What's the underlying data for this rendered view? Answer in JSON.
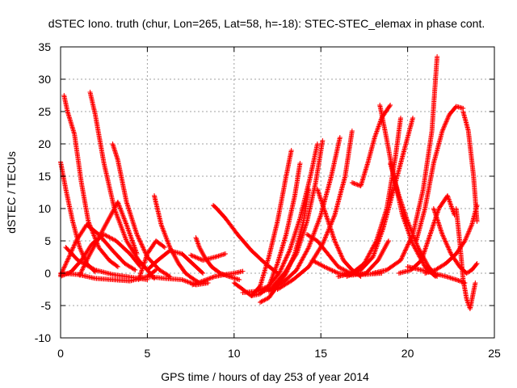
{
  "chart_data": {
    "type": "scatter",
    "title": "dSTEC Iono. truth (chur, Lon=265, Lat=58, h=-18): STEC-STEC_elemax in phase cont.",
    "xlabel": "GPS time / hours of day 253 of year 2014",
    "ylabel": "dSTEC  / TECUs",
    "xlim": [
      0,
      25
    ],
    "ylim": [
      -10,
      35
    ],
    "xticks": [
      0,
      5,
      10,
      15,
      20,
      25
    ],
    "yticks": [
      -10,
      -5,
      0,
      5,
      10,
      15,
      20,
      25,
      30,
      35
    ],
    "grid": true,
    "marker": "+",
    "color": "#ff0000",
    "tracks": [
      {
        "x": [
          0.0,
          0.3,
          0.7,
          1.1,
          1.5,
          2.0
        ],
        "y": [
          17.2,
          13.0,
          8.0,
          4.0,
          1.5,
          0.2
        ]
      },
      {
        "x": [
          0.2,
          0.4,
          0.8,
          1.2,
          1.6,
          2.2,
          2.8,
          3.3
        ],
        "y": [
          27.5,
          25.0,
          21.5,
          14.0,
          8.0,
          4.0,
          2.0,
          1.0
        ]
      },
      {
        "x": [
          0.0,
          0.6,
          1.2,
          1.8,
          2.5,
          3.2,
          4.0,
          4.6
        ],
        "y": [
          -0.5,
          0.2,
          2.0,
          4.5,
          6.0,
          5.0,
          3.0,
          1.0
        ]
      },
      {
        "x": [
          0.0,
          1.0,
          2.0,
          3.0,
          4.0,
          5.0,
          5.5
        ],
        "y": [
          0.0,
          -0.2,
          -0.8,
          -1.0,
          -1.2,
          -0.5,
          0.5
        ]
      },
      {
        "x": [
          0.0,
          0.4,
          0.9,
          1.5,
          2.2,
          3.0,
          3.7,
          4.3
        ],
        "y": [
          -0.3,
          2.0,
          5.0,
          7.5,
          6.0,
          3.5,
          1.5,
          0.5
        ]
      },
      {
        "x": [
          1.7,
          2.0,
          2.5,
          3.1,
          3.8,
          4.5,
          5.0,
          5.4
        ],
        "y": [
          28.0,
          24.5,
          17.0,
          10.0,
          5.0,
          2.0,
          0.5,
          -0.8
        ]
      },
      {
        "x": [
          3.0,
          3.3,
          3.8,
          4.4,
          5.0,
          5.7,
          6.3
        ],
        "y": [
          20.0,
          17.5,
          11.0,
          6.0,
          2.5,
          0.5,
          -0.5
        ]
      },
      {
        "x": [
          1.1,
          1.6,
          2.2,
          2.7,
          3.3,
          3.8,
          4.4
        ],
        "y": [
          -0.3,
          2.5,
          5.5,
          8.0,
          11.0,
          7.5,
          3.0
        ]
      },
      {
        "x": [
          0.3,
          1.0,
          2.0,
          3.0,
          4.0,
          5.0
        ],
        "y": [
          4.0,
          2.0,
          0.5,
          -0.2,
          -0.6,
          -1.0
        ]
      },
      {
        "x": [
          4.5,
          5.0,
          5.5,
          6.0
        ],
        "y": [
          -1.0,
          3.0,
          5.0,
          4.0
        ]
      },
      {
        "x": [
          5.4,
          5.8,
          6.3,
          6.8,
          7.2,
          7.6,
          8.0
        ],
        "y": [
          12.0,
          7.5,
          4.0,
          1.5,
          0.0,
          -0.8,
          -1.5
        ]
      },
      {
        "x": [
          5.0,
          5.6,
          6.3,
          7.0,
          7.6,
          8.2
        ],
        "y": [
          0.5,
          2.0,
          3.5,
          3.0,
          1.5,
          0.0
        ]
      },
      {
        "x": [
          5.0,
          6.0,
          7.0,
          7.8,
          8.5
        ],
        "y": [
          -0.5,
          -0.8,
          -1.0,
          -1.8,
          -1.5
        ]
      },
      {
        "x": [
          7.8,
          8.0,
          8.3,
          8.7,
          9.2,
          9.7,
          10.3
        ],
        "y": [
          5.5,
          4.0,
          2.5,
          1.0,
          0.0,
          -0.5,
          -1.0
        ]
      },
      {
        "x": [
          7.6,
          8.2,
          8.9,
          9.5,
          10.0,
          10.5
        ],
        "y": [
          -1.8,
          -1.2,
          -0.5,
          -0.2,
          0.0,
          0.3
        ]
      },
      {
        "x": [
          7.5,
          8.2,
          8.9,
          9.5
        ],
        "y": [
          2.8,
          2.0,
          2.5,
          3.0
        ]
      },
      {
        "x": [
          8.8,
          9.0,
          9.5,
          10.2,
          11.0,
          11.8,
          12.5
        ],
        "y": [
          10.5,
          10.0,
          8.5,
          6.0,
          3.5,
          1.5,
          0.0
        ]
      },
      {
        "x": [
          10.0,
          10.5,
          11.0,
          11.5,
          12.0,
          12.5,
          13.0,
          13.3
        ],
        "y": [
          -1.5,
          -2.5,
          -3.5,
          -2.0,
          2.5,
          8.0,
          15.0,
          19.0
        ]
      },
      {
        "x": [
          11.0,
          11.5,
          12.0,
          12.5,
          13.0,
          13.5,
          13.8
        ],
        "y": [
          -3.5,
          -3.2,
          -2.0,
          1.5,
          6.0,
          12.0,
          17.0
        ]
      },
      {
        "x": [
          11.5,
          12.0,
          12.5,
          13.0,
          13.5,
          14.0,
          14.3
        ],
        "y": [
          -4.5,
          -3.8,
          -2.0,
          0.0,
          3.0,
          8.0,
          13.0
        ]
      },
      {
        "x": [
          10.5,
          11.3,
          12.0,
          12.6,
          13.2,
          13.8,
          14.4,
          14.8
        ],
        "y": [
          -3.0,
          -2.8,
          -2.0,
          0.0,
          3.5,
          8.5,
          15.0,
          20.0
        ]
      },
      {
        "x": [
          11.5,
          12.2,
          12.9,
          13.6,
          14.2,
          14.7,
          15.1
        ],
        "y": [
          -3.0,
          -2.2,
          0.0,
          3.0,
          8.0,
          14.0,
          20.5
        ]
      },
      {
        "x": [
          12.0,
          12.8,
          13.6,
          14.3,
          15.0,
          15.6,
          16.1
        ],
        "y": [
          -2.8,
          -1.5,
          0.5,
          4.0,
          9.0,
          15.0,
          21.0
        ]
      },
      {
        "x": [
          12.5,
          13.4,
          14.3,
          15.1,
          15.8,
          16.4,
          16.8
        ],
        "y": [
          -2.5,
          -1.0,
          1.0,
          4.5,
          9.0,
          15.0,
          22.0
        ]
      },
      {
        "x": [
          14.8,
          15.3,
          15.8,
          16.3,
          16.8,
          17.3
        ],
        "y": [
          13.0,
          9.0,
          5.0,
          2.0,
          0.5,
          -0.5
        ]
      },
      {
        "x": [
          14.2,
          14.8,
          15.4,
          16.0,
          16.7,
          17.5,
          18.5
        ],
        "y": [
          6.0,
          5.0,
          3.0,
          1.0,
          0.0,
          -0.2,
          0.0
        ]
      },
      {
        "x": [
          14.5,
          15.2,
          16.0,
          16.8,
          17.6,
          18.3,
          18.9
        ],
        "y": [
          2.0,
          1.0,
          0.0,
          -0.3,
          0.0,
          2.0,
          5.0
        ]
      },
      {
        "x": [
          16.0,
          16.8,
          17.5,
          18.2,
          18.8,
          19.3,
          19.6
        ],
        "y": [
          -0.5,
          0.0,
          1.5,
          5.0,
          10.0,
          18.0,
          24.0
        ]
      },
      {
        "x": [
          16.5,
          17.3,
          18.0,
          18.6,
          19.2,
          19.8,
          20.3
        ],
        "y": [
          -0.5,
          0.5,
          2.5,
          7.0,
          13.0,
          19.0,
          24.0
        ]
      },
      {
        "x": [
          16.8,
          17.3,
          17.7,
          18.1,
          18.5,
          19.0
        ],
        "y": [
          14.0,
          13.5,
          17.0,
          21.0,
          24.0,
          26.0
        ]
      },
      {
        "x": [
          18.4,
          18.7,
          19.2,
          19.7,
          20.3,
          21.0,
          21.6
        ],
        "y": [
          26.0,
          22.0,
          15.0,
          9.0,
          4.5,
          1.0,
          -0.5
        ]
      },
      {
        "x": [
          19.0,
          19.5,
          20.0,
          20.6,
          21.2,
          21.7
        ],
        "y": [
          17.0,
          12.0,
          8.0,
          4.0,
          1.0,
          -0.5
        ]
      },
      {
        "x": [
          18.0,
          18.8,
          19.6,
          20.3,
          20.9,
          21.4,
          21.7
        ],
        "y": [
          0.0,
          0.5,
          2.0,
          6.0,
          13.0,
          22.0,
          33.5
        ]
      },
      {
        "x": [
          19.5,
          20.2,
          20.8,
          21.3,
          21.8,
          22.3,
          22.7
        ],
        "y": [
          0.0,
          0.5,
          2.0,
          6.0,
          10.0,
          12.0,
          9.0
        ]
      },
      {
        "x": [
          20.5,
          21.0,
          21.5,
          22.0,
          22.4,
          22.8,
          23.2
        ],
        "y": [
          5.0,
          10.0,
          17.0,
          22.0,
          24.5,
          25.8,
          25.5
        ]
      },
      {
        "x": [
          23.2,
          23.5,
          23.8,
          24.0
        ],
        "y": [
          25.0,
          22.0,
          15.0,
          8.0
        ]
      },
      {
        "x": [
          21.5,
          22.0,
          22.5,
          23.0,
          23.4,
          23.7,
          24.0
        ],
        "y": [
          10.0,
          6.0,
          3.0,
          1.0,
          0.0,
          0.5,
          1.5
        ]
      },
      {
        "x": [
          22.8,
          23.0,
          23.2,
          23.4,
          23.6,
          23.9
        ],
        "y": [
          10.0,
          5.0,
          -1.0,
          -4.0,
          -5.5,
          -1.5
        ]
      },
      {
        "x": [
          21.0,
          21.6,
          22.2,
          22.8,
          23.3,
          23.7,
          24.0
        ],
        "y": [
          0.0,
          0.5,
          1.5,
          3.0,
          5.0,
          7.5,
          10.5
        ]
      },
      {
        "x": [
          20.0,
          20.8,
          21.5,
          22.2,
          22.8,
          23.3
        ],
        "y": [
          1.0,
          0.5,
          0.0,
          -0.5,
          -1.0,
          -1.5
        ]
      }
    ]
  }
}
